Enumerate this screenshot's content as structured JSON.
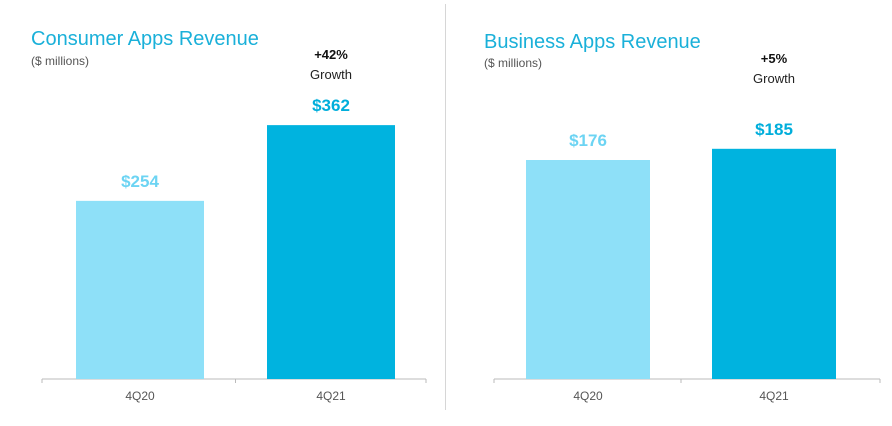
{
  "theme": {
    "title_color": "#1ab0d9",
    "bar_colors": [
      "#8ee0f8",
      "#00b3df"
    ],
    "label_colors": [
      "#6cd4f3",
      "#00aedb"
    ],
    "axis_color": "#bbbbbb"
  },
  "chart_data": [
    {
      "type": "bar",
      "title": "Consumer Apps Revenue",
      "subtitle": "($ millions)",
      "categories": [
        "4Q20",
        "4Q21"
      ],
      "values": [
        254,
        362
      ],
      "value_labels": [
        "$254",
        "$362"
      ],
      "ylim": [
        0,
        430
      ],
      "annotation": {
        "value": "+42%",
        "label": "Growth"
      }
    },
    {
      "type": "bar",
      "title": "Business Apps Revenue",
      "subtitle": "($ millions)",
      "categories": [
        "4Q20",
        "4Q21"
      ],
      "values": [
        176,
        185
      ],
      "value_labels": [
        "$176",
        "$185"
      ],
      "ylim": [
        0,
        220
      ],
      "annotation": {
        "value": "+5%",
        "label": "Growth"
      }
    }
  ]
}
